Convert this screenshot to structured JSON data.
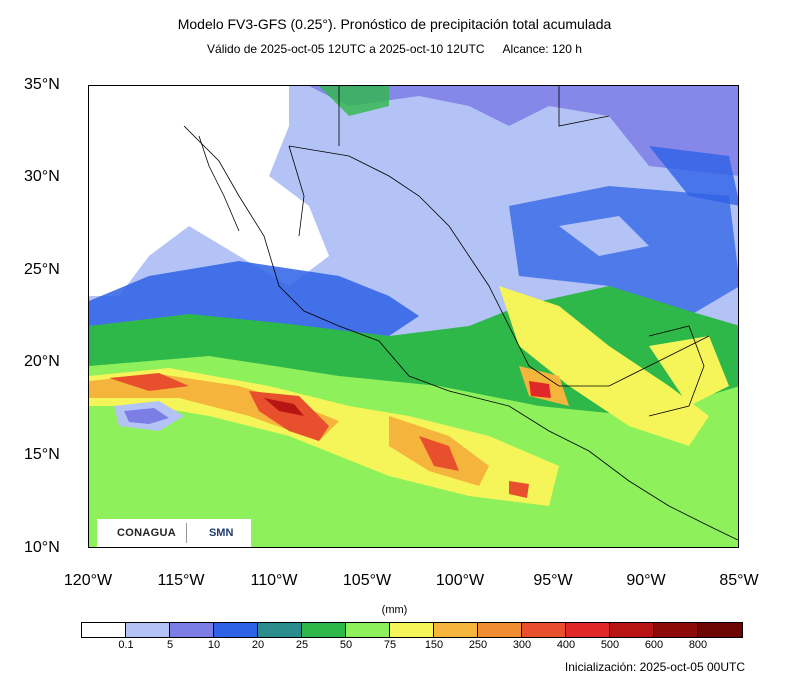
{
  "header": {
    "title": "Modelo FV3-GFS (0.25°). Pronóstico de precipitación total acumulada",
    "valid": "Válido de 2025-oct-05 12UTC a 2025-oct-10 12UTC",
    "range": "Alcance: 120 h"
  },
  "map": {
    "lat_labels": [
      "35°N",
      "30°N",
      "25°N",
      "20°N",
      "15°N",
      "10°N"
    ],
    "lon_labels": [
      "120°W",
      "115°W",
      "110°W",
      "105°W",
      "100°W",
      "95°W",
      "90°W",
      "85°W"
    ],
    "bounds": {
      "west": -120,
      "east": -85,
      "south": 10,
      "north": 35
    }
  },
  "logos": {
    "left": "CONAGUA",
    "right": "SMN"
  },
  "colorbar": {
    "units": "(mm)",
    "levels": [
      "0.1",
      "5",
      "10",
      "20",
      "25",
      "50",
      "75",
      "150",
      "250",
      "300",
      "400",
      "500",
      "600",
      "800"
    ],
    "colors": [
      "#ffffff",
      "#b4c3f5",
      "#7d7de6",
      "#2d61e6",
      "#2a8c8c",
      "#2fb84a",
      "#8ef05a",
      "#f5f55a",
      "#f5b43c",
      "#f08c32",
      "#e8502d",
      "#e12828",
      "#b91414",
      "#8c0a0a",
      "#6e0505"
    ]
  },
  "footer": {
    "init": "Inicialización: 2025-oct-05 00UTC"
  }
}
